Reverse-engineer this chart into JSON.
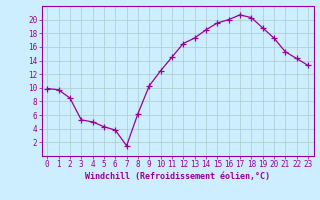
{
  "x": [
    0,
    1,
    2,
    3,
    4,
    5,
    6,
    7,
    8,
    9,
    10,
    11,
    12,
    13,
    14,
    15,
    16,
    17,
    18,
    19,
    20,
    21,
    22,
    23
  ],
  "y": [
    9.9,
    9.7,
    8.5,
    5.3,
    5.0,
    4.3,
    3.8,
    1.5,
    6.2,
    10.3,
    12.5,
    14.5,
    16.5,
    17.3,
    18.5,
    19.5,
    20.0,
    20.7,
    20.3,
    18.8,
    17.3,
    15.3,
    14.3,
    13.3
  ],
  "line_color": "#990099",
  "marker": "+",
  "marker_size": 4,
  "bg_color": "#cceeff",
  "grid_color": "#aacccc",
  "xlabel": "Windchill (Refroidissement éolien,°C)",
  "xlim": [
    -0.5,
    23.5
  ],
  "ylim": [
    0,
    22
  ],
  "yticks": [
    2,
    4,
    6,
    8,
    10,
    12,
    14,
    16,
    18,
    20
  ],
  "xticks": [
    0,
    1,
    2,
    3,
    4,
    5,
    6,
    7,
    8,
    9,
    10,
    11,
    12,
    13,
    14,
    15,
    16,
    17,
    18,
    19,
    20,
    21,
    22,
    23
  ],
  "tick_color": "#990099",
  "label_color": "#990099",
  "axis_color": "#990099",
  "tick_fontsize": 5.5,
  "xlabel_fontsize": 6.0
}
